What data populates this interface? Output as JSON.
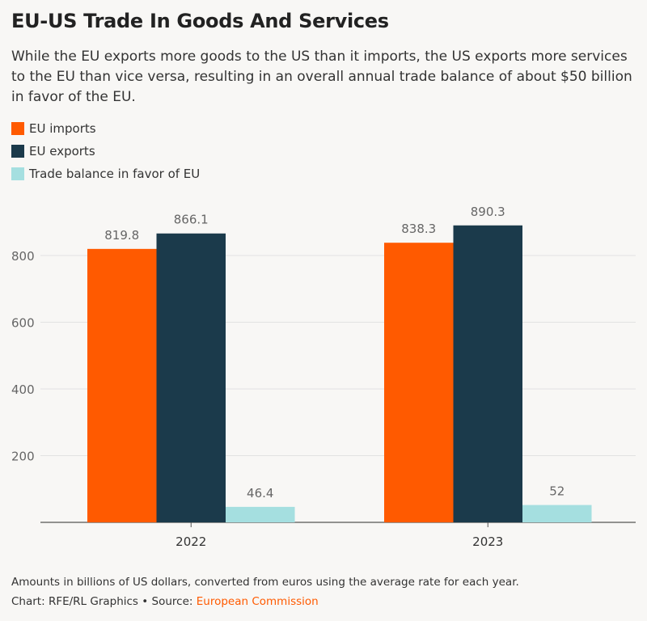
{
  "title": "EU-US Trade In Goods And Services",
  "subtitle": "While the EU exports more goods to the US than it imports, the US exports more services to the EU than vice versa, resulting in an overall annual trade balance of about $50 billion in favor of the EU.",
  "colors": {
    "imports": "#ff5a00",
    "exports": "#1b3a4b",
    "balance": "#a5dfe0",
    "grid": "#e2e2e2",
    "axis": "#555555",
    "source_link": "#ff5a00"
  },
  "chart_data": {
    "type": "bar",
    "categories": [
      "2022",
      "2023"
    ],
    "series": [
      {
        "name": "EU imports",
        "values": [
          819.8,
          838.3
        ],
        "labels": [
          "819.8",
          "838.3"
        ]
      },
      {
        "name": "EU exports",
        "values": [
          866.1,
          890.3
        ],
        "labels": [
          "866.1",
          "890.3"
        ]
      },
      {
        "name": "Trade balance in favor of EU",
        "values": [
          46.4,
          52
        ],
        "labels": [
          "46.4",
          "52"
        ]
      }
    ],
    "ylim": [
      0,
      1000
    ],
    "yticks": [
      200,
      400,
      600,
      800
    ],
    "grid": true,
    "legend_position": "top-left"
  },
  "footer": {
    "note": "Amounts in billions of US dollars, converted from euros using the average rate for each year.",
    "credit_prefix": "Chart: RFE/RL Graphics • Source: ",
    "source_name": "European Commission"
  }
}
